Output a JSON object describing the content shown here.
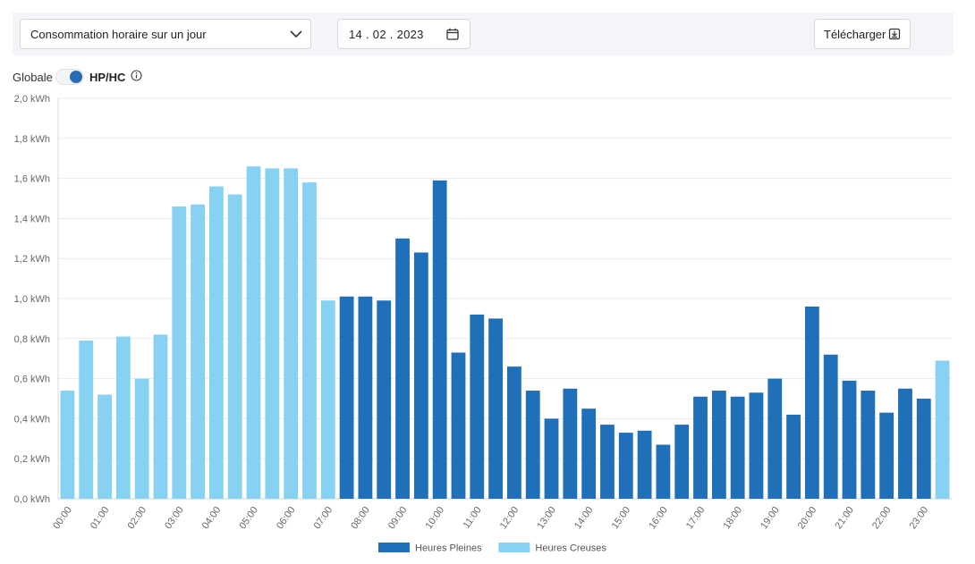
{
  "toolbar": {
    "view_select": "Consommation horaire sur un jour",
    "date": "14 . 02 . 2023",
    "download_label": "Télécharger"
  },
  "toggle": {
    "left_label": "Globale",
    "right_label": "HP/HC",
    "selected": "HP/HC"
  },
  "colors": {
    "heures_pleines": "#1f70b8",
    "heures_creuses": "#87d2f2",
    "accent": "#2a6bb5"
  },
  "chart_data": {
    "type": "bar",
    "ylim": [
      0,
      2.0
    ],
    "y_ticks": [
      "0,0 kWh",
      "0,2 kWh",
      "0,4 kWh",
      "0,6 kWh",
      "0,8 kWh",
      "1,0 kWh",
      "1,2 kWh",
      "1,4 kWh",
      "1,6 kWh",
      "1,8 kWh",
      "2,0 kWh"
    ],
    "x_tick_labels": [
      "00:00",
      "01:00",
      "02:00",
      "03:00",
      "04:00",
      "05:00",
      "06:00",
      "07:00",
      "08:00",
      "09:00",
      "10:00",
      "11:00",
      "12:00",
      "13:00",
      "14:00",
      "15:00",
      "16:00",
      "17:00",
      "18:00",
      "19:00",
      "20:00",
      "21:00",
      "22:00",
      "23:00"
    ],
    "grid": true,
    "legend_position": "bottom",
    "series": [
      {
        "name": "Heures Pleines",
        "color": "#1f70b8"
      },
      {
        "name": "Heures Creuses",
        "color": "#87d2f2"
      }
    ],
    "bars": [
      {
        "time": "00:00",
        "value": 0.54,
        "series": "Heures Creuses"
      },
      {
        "time": "00:30",
        "value": 0.79,
        "series": "Heures Creuses"
      },
      {
        "time": "01:00",
        "value": 0.52,
        "series": "Heures Creuses"
      },
      {
        "time": "01:30",
        "value": 0.81,
        "series": "Heures Creuses"
      },
      {
        "time": "02:00",
        "value": 0.6,
        "series": "Heures Creuses"
      },
      {
        "time": "02:30",
        "value": 0.82,
        "series": "Heures Creuses"
      },
      {
        "time": "03:00",
        "value": 1.46,
        "series": "Heures Creuses"
      },
      {
        "time": "03:30",
        "value": 1.47,
        "series": "Heures Creuses"
      },
      {
        "time": "04:00",
        "value": 1.56,
        "series": "Heures Creuses"
      },
      {
        "time": "04:30",
        "value": 1.52,
        "series": "Heures Creuses"
      },
      {
        "time": "05:00",
        "value": 1.66,
        "series": "Heures Creuses"
      },
      {
        "time": "05:30",
        "value": 1.65,
        "series": "Heures Creuses"
      },
      {
        "time": "06:00",
        "value": 1.65,
        "series": "Heures Creuses"
      },
      {
        "time": "06:30",
        "value": 1.58,
        "series": "Heures Creuses"
      },
      {
        "time": "07:00",
        "value": 0.99,
        "series": "Heures Creuses"
      },
      {
        "time": "07:30",
        "value": 1.01,
        "series": "Heures Pleines"
      },
      {
        "time": "08:00",
        "value": 1.01,
        "series": "Heures Pleines"
      },
      {
        "time": "08:30",
        "value": 0.99,
        "series": "Heures Pleines"
      },
      {
        "time": "09:00",
        "value": 1.3,
        "series": "Heures Pleines"
      },
      {
        "time": "09:30",
        "value": 1.23,
        "series": "Heures Pleines"
      },
      {
        "time": "10:00",
        "value": 1.59,
        "series": "Heures Pleines"
      },
      {
        "time": "10:30",
        "value": 0.73,
        "series": "Heures Pleines"
      },
      {
        "time": "11:00",
        "value": 0.92,
        "series": "Heures Pleines"
      },
      {
        "time": "11:30",
        "value": 0.9,
        "series": "Heures Pleines"
      },
      {
        "time": "12:00",
        "value": 0.66,
        "series": "Heures Pleines"
      },
      {
        "time": "12:30",
        "value": 0.54,
        "series": "Heures Pleines"
      },
      {
        "time": "13:00",
        "value": 0.4,
        "series": "Heures Pleines"
      },
      {
        "time": "13:30",
        "value": 0.55,
        "series": "Heures Pleines"
      },
      {
        "time": "14:00",
        "value": 0.45,
        "series": "Heures Pleines"
      },
      {
        "time": "14:30",
        "value": 0.37,
        "series": "Heures Pleines"
      },
      {
        "time": "15:00",
        "value": 0.33,
        "series": "Heures Pleines"
      },
      {
        "time": "15:30",
        "value": 0.34,
        "series": "Heures Pleines"
      },
      {
        "time": "16:00",
        "value": 0.27,
        "series": "Heures Pleines"
      },
      {
        "time": "16:30",
        "value": 0.37,
        "series": "Heures Pleines"
      },
      {
        "time": "17:00",
        "value": 0.51,
        "series": "Heures Pleines"
      },
      {
        "time": "17:30",
        "value": 0.54,
        "series": "Heures Pleines"
      },
      {
        "time": "18:00",
        "value": 0.51,
        "series": "Heures Pleines"
      },
      {
        "time": "18:30",
        "value": 0.53,
        "series": "Heures Pleines"
      },
      {
        "time": "19:00",
        "value": 0.6,
        "series": "Heures Pleines"
      },
      {
        "time": "19:30",
        "value": 0.42,
        "series": "Heures Pleines"
      },
      {
        "time": "20:00",
        "value": 0.96,
        "series": "Heures Pleines"
      },
      {
        "time": "20:30",
        "value": 0.72,
        "series": "Heures Pleines"
      },
      {
        "time": "21:00",
        "value": 0.59,
        "series": "Heures Pleines"
      },
      {
        "time": "21:30",
        "value": 0.54,
        "series": "Heures Pleines"
      },
      {
        "time": "22:00",
        "value": 0.43,
        "series": "Heures Pleines"
      },
      {
        "time": "22:30",
        "value": 0.55,
        "series": "Heures Pleines"
      },
      {
        "time": "23:00",
        "value": 0.5,
        "series": "Heures Pleines"
      },
      {
        "time": "23:30",
        "value": 0.69,
        "series": "Heures Creuses"
      }
    ]
  }
}
